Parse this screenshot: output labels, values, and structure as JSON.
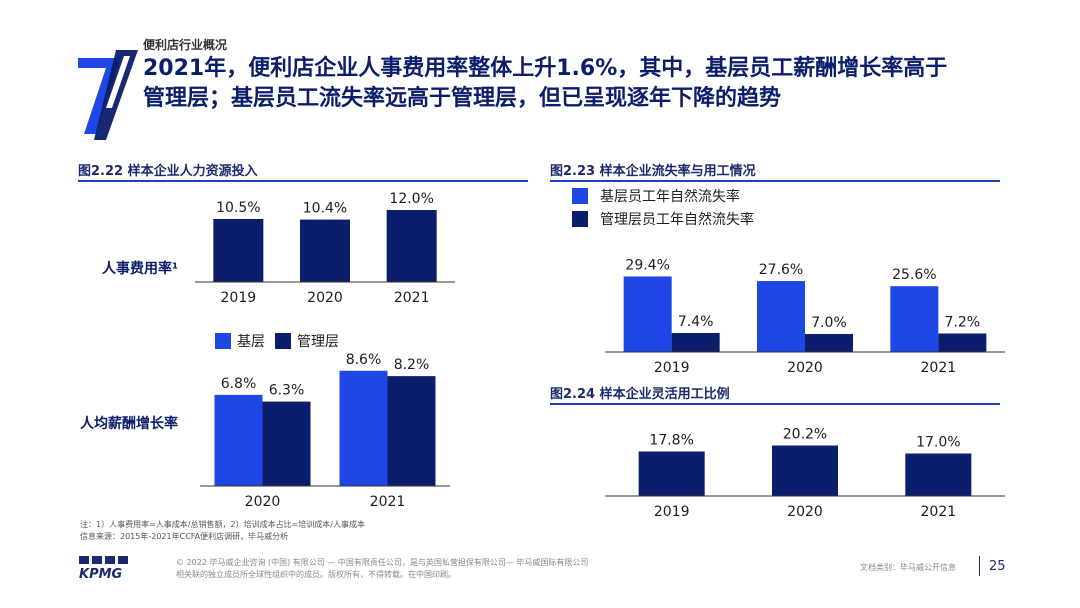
{
  "header": {
    "section_label": "便利店行业概况",
    "headline_line1": "2021年，便利店企业人事费用率整体上升1.6%，其中，基层员工薪酬增长率高于",
    "headline_line2": "管理层；基层员工流失率远高于管理层，但已呈现逐年下降的趋势",
    "chapter_number": "7"
  },
  "colors": {
    "bright_blue": "#1f47e6",
    "navy": "#0b1d6b",
    "rule": "#1e3fbf"
  },
  "chart_data": [
    {
      "id": "fig_2_22_top",
      "type": "bar",
      "title": "图2.22 样本企业人力资源投入",
      "row_label": "人事费用率¹",
      "categories": [
        "2019",
        "2020",
        "2021"
      ],
      "values": [
        10.5,
        10.4,
        12.0
      ],
      "labels": [
        "10.5%",
        "10.4%",
        "12.0%"
      ],
      "color": "#0b1d6b"
    },
    {
      "id": "fig_2_22_bottom",
      "type": "bar",
      "row_label": "人均薪酬增长率",
      "categories": [
        "2020",
        "2021"
      ],
      "legend": [
        "基层",
        "管理层"
      ],
      "series": [
        {
          "name": "基层",
          "values": [
            6.8,
            8.6
          ],
          "labels": [
            "6.8%",
            "8.6%"
          ],
          "color": "#1f47e6"
        },
        {
          "name": "管理层",
          "values": [
            6.3,
            8.2
          ],
          "labels": [
            "6.3%",
            "8.2%"
          ],
          "color": "#0b1d6b"
        }
      ]
    },
    {
      "id": "fig_2_23",
      "type": "bar",
      "title": "图2.23 样本企业流失率与用工情况",
      "categories": [
        "2019",
        "2020",
        "2021"
      ],
      "legend": [
        "基层员工年自然流失率",
        "管理层员工年自然流失率"
      ],
      "series": [
        {
          "name": "基层员工年自然流失率",
          "values": [
            29.4,
            27.6,
            25.6
          ],
          "labels": [
            "29.4%",
            "27.6%",
            "25.6%"
          ],
          "color": "#1f47e6"
        },
        {
          "name": "管理层员工年自然流失率",
          "values": [
            7.4,
            7.0,
            7.2
          ],
          "labels": [
            "7.4%",
            "7.0%",
            "7.2%"
          ],
          "color": "#0b1d6b"
        }
      ]
    },
    {
      "id": "fig_2_24",
      "type": "bar",
      "title": "图2.24 样本企业灵活用工比例",
      "categories": [
        "2019",
        "2020",
        "2021"
      ],
      "values": [
        17.8,
        20.2,
        17.0
      ],
      "labels": [
        "17.8%",
        "20.2%",
        "17.0%"
      ],
      "color": "#0b1d6b"
    }
  ],
  "notes": {
    "line1": "注：1）人事费用率=人事成本/总销售额，2）培训成本占比=培训成本/人事成本",
    "line2": "信息来源：2015年-2021年CCFA便利店调研，毕马威分析"
  },
  "footer": {
    "brand": "KPMG",
    "copyright_line1": "© 2022 毕马威企业咨询 (中国) 有限公司 — 中国有限责任公司，是与英国私营担保有限公司— 毕马威国际有限公司",
    "copyright_line2": "相关联的独立成员所全球性组织中的成员。版权所有，不得转载。在中国印刷。",
    "classification": "文档类别：毕马威公开信息",
    "page_number": "25"
  }
}
